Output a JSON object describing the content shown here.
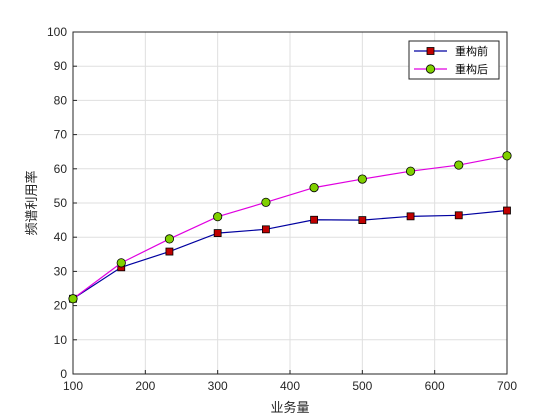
{
  "chart_data": {
    "type": "line",
    "xlabel": "业务量",
    "ylabel": "频谱利用率",
    "xlim": [
      100,
      700
    ],
    "ylim": [
      0,
      100
    ],
    "xticks": [
      100,
      200,
      300,
      400,
      500,
      600,
      700
    ],
    "yticks": [
      0,
      10,
      20,
      30,
      40,
      50,
      60,
      70,
      80,
      90,
      100
    ],
    "grid": true,
    "legend_position": "top-right",
    "series": [
      {
        "name": "重构前",
        "color": "#0000a0",
        "marker": "square",
        "marker_color": "#c00000",
        "x": [
          100,
          166.7,
          233.3,
          300,
          366.7,
          433.3,
          500,
          566.7,
          633.3,
          700
        ],
        "y": [
          22.0,
          31.2,
          35.8,
          41.2,
          42.3,
          45.1,
          45.0,
          46.1,
          46.4,
          47.8
        ]
      },
      {
        "name": "重构后",
        "color": "#e000e0",
        "marker": "circle",
        "marker_color": "#80d000",
        "x": [
          100,
          166.7,
          233.3,
          300,
          366.7,
          433.3,
          500,
          566.7,
          633.3,
          700
        ],
        "y": [
          22.0,
          32.5,
          39.5,
          46.0,
          50.2,
          54.5,
          57.0,
          59.3,
          61.1,
          63.8
        ]
      }
    ]
  }
}
